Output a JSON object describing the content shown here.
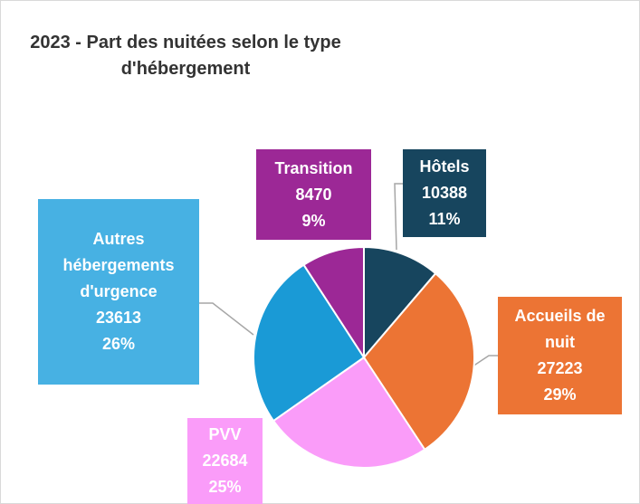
{
  "chart_data": {
    "type": "pie",
    "title": "2023 - Part des nuitées selon le type d'hébergement",
    "categories": [
      "Hôtels",
      "Accueils de nuit",
      "PVV",
      "Autres hébergements d'urgence",
      "Transition"
    ],
    "values": [
      10388,
      27223,
      22684,
      23613,
      8470
    ],
    "percent_labels": [
      "11%",
      "29%",
      "25%",
      "26%",
      "9%"
    ],
    "colors": [
      "#17455e",
      "#ec7434",
      "#fa9cf9",
      "#1a9ad6",
      "#9c2896"
    ],
    "label_colors": [
      "#17455e",
      "#ec7434",
      "#fa9cf9",
      "#47b1e3",
      "#9c2896"
    ]
  }
}
